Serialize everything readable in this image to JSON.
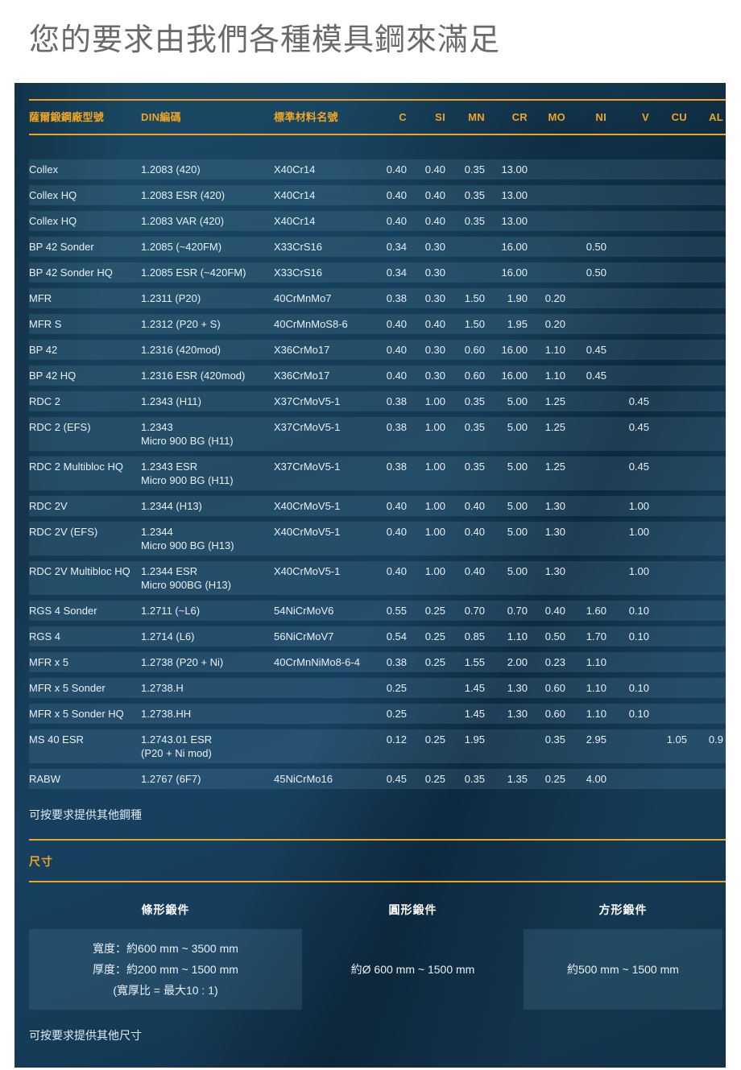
{
  "title": "您的要求由我們各種模具鋼來滿足",
  "colors": {
    "accent_gold": "#f0a424",
    "panel_navy": "#16405c",
    "row_stripe": "rgba(127,178,210,0.15)",
    "title_gray": "#6a6a6a",
    "body_text": "#e9eff4"
  },
  "table": {
    "headers": [
      "薩爾鍛鋼廠型號",
      "DIN編碼",
      "標準材料名號",
      "C",
      "SI",
      "MN",
      "CR",
      "MO",
      "NI",
      "V",
      "CU",
      "AL"
    ],
    "rows": [
      {
        "type": "Collex",
        "din": [
          "1.2083 (420)"
        ],
        "material": "X40Cr14",
        "values": [
          "0.40",
          "0.40",
          "0.35",
          "13.00",
          "",
          "",
          "",
          "",
          ""
        ]
      },
      {
        "type": "Collex HQ",
        "din": [
          "1.2083 ESR (420)"
        ],
        "material": "X40Cr14",
        "values": [
          "0.40",
          "0.40",
          "0.35",
          "13.00",
          "",
          "",
          "",
          "",
          ""
        ]
      },
      {
        "type": "Collex HQ",
        "din": [
          "1.2083 VAR (420)"
        ],
        "material": "X40Cr14",
        "values": [
          "0.40",
          "0.40",
          "0.35",
          "13.00",
          "",
          "",
          "",
          "",
          ""
        ]
      },
      {
        "type": "BP 42 Sonder",
        "din": [
          "1.2085 (~420FM)"
        ],
        "material": "X33CrS16",
        "values": [
          "0.34",
          "0.30",
          "",
          "16.00",
          "",
          "0.50",
          "",
          "",
          ""
        ]
      },
      {
        "type": "BP 42 Sonder HQ",
        "din": [
          "1.2085 ESR (~420FM)"
        ],
        "material": "X33CrS16",
        "values": [
          "0.34",
          "0.30",
          "",
          "16.00",
          "",
          "0.50",
          "",
          "",
          ""
        ]
      },
      {
        "type": "MFR",
        "din": [
          "1.2311 (P20)"
        ],
        "material": "40CrMnMo7",
        "values": [
          "0.38",
          "0.30",
          "1.50",
          "1.90",
          "0.20",
          "",
          "",
          "",
          ""
        ]
      },
      {
        "type": "MFR S",
        "din": [
          "1.2312 (P20 + S)"
        ],
        "material": "40CrMnMoS8-6",
        "values": [
          "0.40",
          "0.40",
          "1.50",
          "1.95",
          "0.20",
          "",
          "",
          "",
          ""
        ]
      },
      {
        "type": "BP 42",
        "din": [
          "1.2316 (420mod)"
        ],
        "material": "X36CrMo17",
        "values": [
          "0.40",
          "0.30",
          "0.60",
          "16.00",
          "1.10",
          "0.45",
          "",
          "",
          ""
        ]
      },
      {
        "type": "BP 42 HQ",
        "din": [
          "1.2316 ESR (420mod)"
        ],
        "material": "X36CrMo17",
        "values": [
          "0.40",
          "0.30",
          "0.60",
          "16.00",
          "1.10",
          "0.45",
          "",
          "",
          ""
        ]
      },
      {
        "type": "RDC 2",
        "din": [
          "1.2343 (H11)"
        ],
        "material": "X37CrMoV5-1",
        "values": [
          "0.38",
          "1.00",
          "0.35",
          "5.00",
          "1.25",
          "",
          "0.45",
          "",
          ""
        ]
      },
      {
        "type": "RDC 2 (EFS)",
        "din": [
          "1.2343",
          "Micro 900 BG (H11)"
        ],
        "material": "X37CrMoV5-1",
        "values": [
          "0.38",
          "1.00",
          "0.35",
          "5.00",
          "1.25",
          "",
          "0.45",
          "",
          ""
        ]
      },
      {
        "type": "RDC 2 Multibloc HQ",
        "din": [
          "1.2343 ESR",
          "Micro 900 BG (H11)"
        ],
        "material": "X37CrMoV5-1",
        "values": [
          "0.38",
          "1.00",
          "0.35",
          "5.00",
          "1.25",
          "",
          "0.45",
          "",
          ""
        ]
      },
      {
        "type": "RDC 2V",
        "din": [
          "1.2344 (H13)"
        ],
        "material": "X40CrMoV5-1",
        "values": [
          "0.40",
          "1.00",
          "0.40",
          "5.00",
          "1.30",
          "",
          "1.00",
          "",
          ""
        ]
      },
      {
        "type": "RDC 2V (EFS)",
        "din": [
          "1.2344",
          "Micro 900 BG (H13)"
        ],
        "material": "X40CrMoV5-1",
        "values": [
          "0.40",
          "1.00",
          "0.40",
          "5.00",
          "1.30",
          "",
          "1.00",
          "",
          ""
        ]
      },
      {
        "type": "RDC 2V Multibloc HQ",
        "din": [
          "1.2344 ESR",
          "Micro 900BG (H13)"
        ],
        "material": "X40CrMoV5-1",
        "values": [
          "0.40",
          "1.00",
          "0.40",
          "5.00",
          "1.30",
          "",
          "1.00",
          "",
          ""
        ]
      },
      {
        "type": "RGS 4 Sonder",
        "din": [
          "1.2711 (~L6)"
        ],
        "material": "54NiCrMoV6",
        "values": [
          "0.55",
          "0.25",
          "0.70",
          "0.70",
          "0.40",
          "1.60",
          "0.10",
          "",
          ""
        ]
      },
      {
        "type": "RGS 4",
        "din": [
          "1.2714 (L6)"
        ],
        "material": "56NiCrMoV7",
        "values": [
          "0.54",
          "0.25",
          "0.85",
          "1.10",
          "0.50",
          "1.70",
          "0.10",
          "",
          ""
        ]
      },
      {
        "type": "MFR x 5",
        "din": [
          "1.2738 (P20 + Ni)"
        ],
        "material": "40CrMnNiMo8-6-4",
        "values": [
          "0.38",
          "0.25",
          "1.55",
          "2.00",
          "0.23",
          "1.10",
          "",
          "",
          ""
        ]
      },
      {
        "type": "MFR x 5 Sonder",
        "din": [
          "1.2738.H"
        ],
        "material": "",
        "values": [
          "0.25",
          "",
          "1.45",
          "1.30",
          "0.60",
          "1.10",
          "0.10",
          "",
          ""
        ]
      },
      {
        "type": "MFR x 5 Sonder HQ",
        "din": [
          "1.2738.HH"
        ],
        "material": "",
        "values": [
          "0.25",
          "",
          "1.45",
          "1.30",
          "0.60",
          "1.10",
          "0.10",
          "",
          ""
        ]
      },
      {
        "type": "MS 40 ESR",
        "din": [
          "1.2743.01 ESR",
          "(P20 + Ni mod)"
        ],
        "material": "",
        "values": [
          "0.12",
          "0.25",
          "1.95",
          "",
          "0.35",
          "2.95",
          "",
          "1.05",
          "0.9"
        ]
      },
      {
        "type": "RABW",
        "din": [
          "1.2767 (6F7)"
        ],
        "material": "45NiCrMo16",
        "values": [
          "0.45",
          "0.25",
          "0.35",
          "1.35",
          "0.25",
          "4.00",
          "",
          "",
          ""
        ]
      }
    ]
  },
  "notes": {
    "steels": "可按要求提供其他鋼種",
    "sizes": "可按要求提供其他尺寸"
  },
  "dimensions": {
    "section_title": "尺寸",
    "columns": [
      {
        "header": "條形鍛件",
        "boxed": true,
        "lines": [
          "寬度：約600 mm ~ 3500 mm",
          "厚度：約200 mm ~ 1500 mm",
          "(寬厚比 = 最大10 : 1)"
        ]
      },
      {
        "header": "圓形鍛件",
        "boxed": false,
        "lines": [
          "約Ø 600 mm ~ 1500 mm"
        ]
      },
      {
        "header": "方形鍛件",
        "boxed": true,
        "lines": [
          "約500 mm ~ 1500 mm"
        ]
      }
    ]
  }
}
